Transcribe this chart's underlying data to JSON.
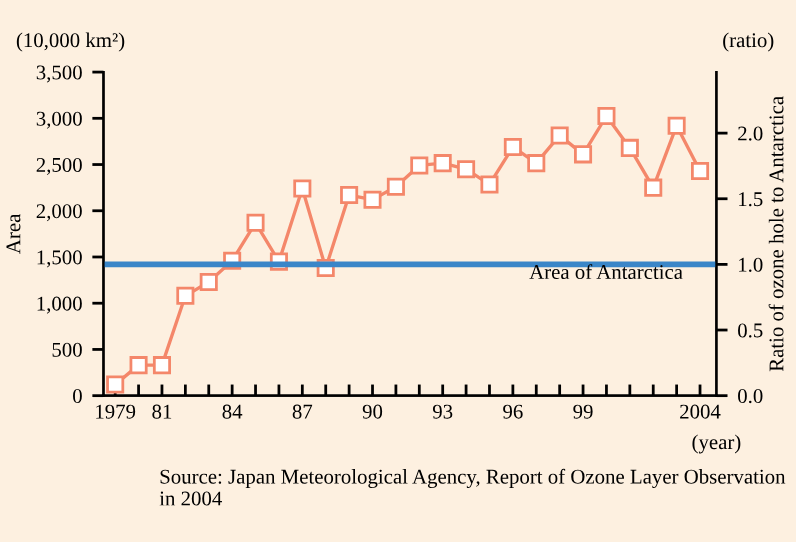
{
  "chart_data": {
    "type": "line",
    "xlabel": "(year)",
    "ylabel": "Area",
    "y2label": "Ratio of ozone hole to Antarctica",
    "x": [
      1979,
      1980,
      1981,
      1982,
      1983,
      1984,
      1985,
      1986,
      1987,
      1988,
      1989,
      1990,
      1991,
      1992,
      1993,
      1994,
      1995,
      1996,
      1997,
      1998,
      1999,
      2000,
      2001,
      2002,
      2003,
      2004
    ],
    "series": [
      {
        "color": "#f4876a",
        "values": [
          120,
          330,
          330,
          1080,
          1230,
          1460,
          1870,
          1450,
          2240,
          1380,
          2170,
          2120,
          2260,
          2490,
          2515,
          2450,
          2285,
          2690,
          2515,
          2815,
          2610,
          3025,
          2680,
          2250,
          2920,
          2430
        ]
      }
    ],
    "marker": "square",
    "xlim": [
      1978.5,
      2004.7
    ],
    "xticks": [
      {
        "value": 1979,
        "label": "1979"
      },
      {
        "value": 1980,
        "label": null
      },
      {
        "value": 1981,
        "label": "81"
      },
      {
        "value": 1982,
        "label": null
      },
      {
        "value": 1983,
        "label": null
      },
      {
        "value": 1984,
        "label": "84"
      },
      {
        "value": 1985,
        "label": null
      },
      {
        "value": 1986,
        "label": null
      },
      {
        "value": 1987,
        "label": "87"
      },
      {
        "value": 1988,
        "label": null
      },
      {
        "value": 1989,
        "label": null
      },
      {
        "value": 1990,
        "label": "90"
      },
      {
        "value": 1991,
        "label": null
      },
      {
        "value": 1992,
        "label": null
      },
      {
        "value": 1993,
        "label": "93"
      },
      {
        "value": 1994,
        "label": null
      },
      {
        "value": 1995,
        "label": null
      },
      {
        "value": 1996,
        "label": "96"
      },
      {
        "value": 1997,
        "label": null
      },
      {
        "value": 1998,
        "label": null
      },
      {
        "value": 1999,
        "label": "99"
      },
      {
        "value": 2000,
        "label": null
      },
      {
        "value": 2001,
        "label": null
      },
      {
        "value": 2002,
        "label": null
      },
      {
        "value": 2003,
        "label": null
      },
      {
        "value": 2004,
        "label": "2004"
      }
    ],
    "ylim": [
      0,
      3500
    ],
    "yticks": [
      0,
      {
        "value": 500,
        "label": "500"
      },
      {
        "value": 1000,
        "label": "1,000"
      },
      {
        "value": 1500,
        "label": "1,500"
      },
      {
        "value": 2000,
        "label": "2,000"
      },
      {
        "value": 2500,
        "label": "2,500"
      },
      {
        "value": 3000,
        "label": "3,000"
      },
      {
        "value": 3500,
        "label": "3,500"
      }
    ],
    "y2lim": [
      0,
      2.465
    ],
    "y2ticks": [
      {
        "value": 0,
        "label": "0.0"
      },
      {
        "value": 0.5,
        "label": "0.5"
      },
      {
        "value": 1,
        "label": "1.0"
      },
      {
        "value": 1.5,
        "label": "1.5"
      },
      {
        "value": 2,
        "label": "2.0"
      }
    ],
    "ref_lines": [
      {
        "axis": "y2",
        "value": 1,
        "label": "Area of Antarctica",
        "color": "#3a86c8"
      }
    ],
    "grid": false,
    "legend": false,
    "annotations": [
      "(10,000 km²)",
      "(ratio)",
      "Source: Japan Meteorological Agency, Report of Ozone Layer Observation in 2004"
    ]
  }
}
